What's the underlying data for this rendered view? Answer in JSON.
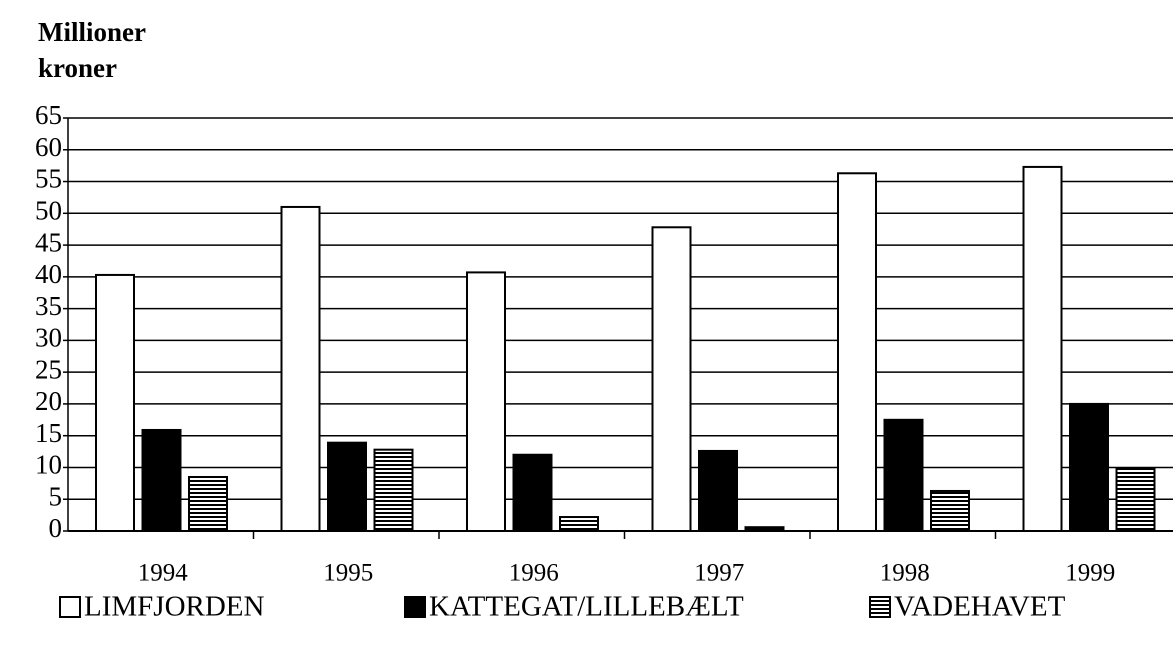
{
  "chart_data": {
    "type": "bar",
    "y_label": "Millioner kroner",
    "categories": [
      "1994",
      "1995",
      "1996",
      "1997",
      "1998",
      "1999"
    ],
    "series": [
      {
        "name": "LIMFJORDEN",
        "color": "#ffffff",
        "values": [
          40.3,
          51,
          40.7,
          47.8,
          56.3,
          57.3
        ]
      },
      {
        "name": "KATTEGAT/LILLEBÆLT",
        "color": "#000000",
        "values": [
          15.9,
          13.9,
          12,
          12.6,
          17.5,
          20
        ]
      },
      {
        "name": "VADEHAVET",
        "color": "#000000",
        "hatch": "horizontal",
        "values": [
          8.5,
          12.8,
          2.2,
          0.6,
          6.3,
          9.8
        ]
      }
    ],
    "ylim": [
      0,
      65
    ],
    "yticks": [
      0,
      5,
      10,
      15,
      20,
      25,
      30,
      35,
      40,
      45,
      50,
      55,
      60,
      65
    ],
    "grid": true,
    "legend": "bottom"
  }
}
